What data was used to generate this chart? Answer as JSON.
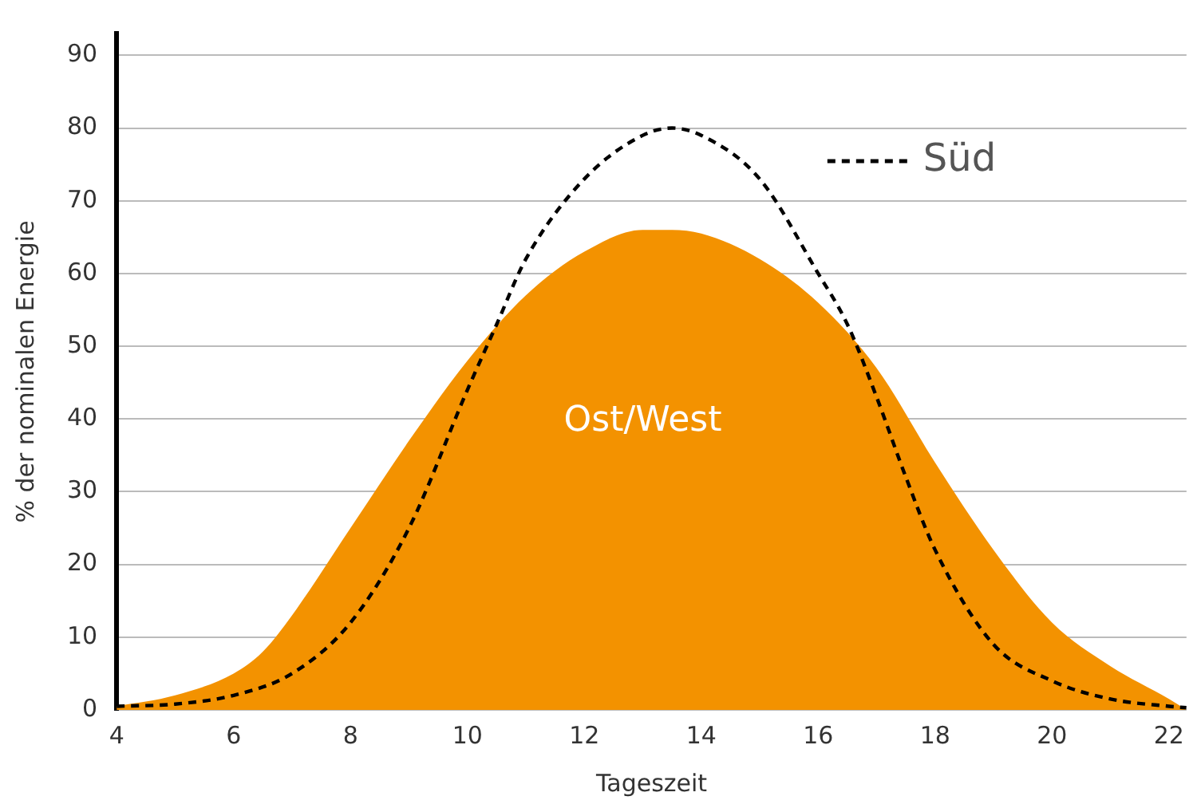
{
  "chart_data": {
    "type": "area",
    "xlabel": "Tageszeit",
    "ylabel": "% der nominalen Energie",
    "xlim": [
      4,
      22.3
    ],
    "xticks": [
      4,
      6,
      8,
      10,
      12,
      14,
      16,
      18,
      20,
      22
    ],
    "ylim": [
      0,
      93
    ],
    "yticks": [
      0,
      10,
      20,
      30,
      40,
      50,
      60,
      70,
      80,
      90
    ],
    "grid": "y",
    "legend": "top right",
    "series": [
      {
        "name": "Ost/West",
        "type": "area",
        "color": "#f39200",
        "x": [
          4,
          5,
          6,
          6.5,
          7,
          8,
          9,
          10,
          11,
          12,
          13,
          13.5,
          14,
          15,
          16,
          17,
          18,
          19,
          20,
          21,
          22,
          22.3
        ],
        "values": [
          0.5,
          2,
          5,
          8,
          13,
          25,
          37,
          48,
          57,
          63,
          66,
          66,
          65.5,
          62,
          56,
          47,
          34,
          22,
          12,
          6,
          1.5,
          0
        ]
      },
      {
        "name": "Süd",
        "type": "line",
        "line_style": "dashed",
        "color": "#000000",
        "x": [
          4,
          5,
          6,
          7,
          8,
          9,
          10,
          10.5,
          11,
          12,
          13,
          13.5,
          14,
          15,
          16,
          16.5,
          17,
          17.5,
          18,
          19,
          20,
          21,
          22,
          22.3
        ],
        "values": [
          0.5,
          0.8,
          2,
          5,
          12,
          25,
          44,
          53,
          62,
          73,
          79,
          80,
          79,
          73,
          60,
          53,
          43,
          32,
          22,
          9,
          4,
          1.5,
          0.5,
          0.3
        ]
      }
    ]
  }
}
